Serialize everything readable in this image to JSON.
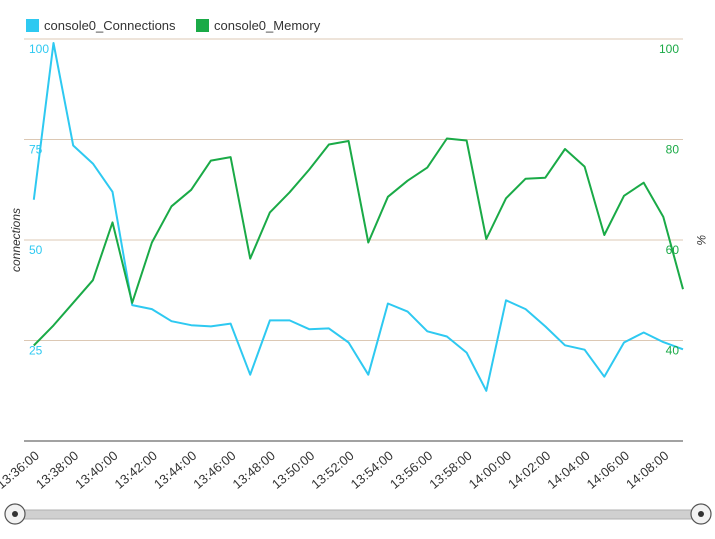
{
  "chart_data": {
    "type": "line",
    "legend": {
      "placement": "top-left",
      "items": [
        {
          "label": "console0_Connections",
          "color": "#2ec9f1"
        },
        {
          "label": "console0_Memory",
          "color": "#1aaa47"
        }
      ]
    },
    "y_left": {
      "label": "connections",
      "range": [
        0,
        100
      ],
      "ticks": [
        {
          "value": 25,
          "label": "25"
        },
        {
          "value": 50,
          "label": "50"
        },
        {
          "value": 75,
          "label": "75"
        },
        {
          "value": 100,
          "label": "100"
        }
      ],
      "color": "#2ec9f1"
    },
    "y_right": {
      "label": "%",
      "range": [
        20,
        100
      ],
      "ticks": [
        {
          "value": 40,
          "label": "40"
        },
        {
          "value": 60,
          "label": "60"
        },
        {
          "value": 80,
          "label": "80"
        },
        {
          "value": 100,
          "label": "100"
        }
      ],
      "color": "#1aaa47"
    },
    "x_axis": {
      "range": [
        0,
        33.5
      ],
      "ticks": [
        {
          "index": 0,
          "label": "13:36:00"
        },
        {
          "index": 2,
          "label": "13:38:00"
        },
        {
          "index": 4,
          "label": "13:40:00"
        },
        {
          "index": 6,
          "label": "13:42:00"
        },
        {
          "index": 8,
          "label": "13:44:00"
        },
        {
          "index": 10,
          "label": "13:46:00"
        },
        {
          "index": 12,
          "label": "13:48:00"
        },
        {
          "index": 14,
          "label": "13:50:00"
        },
        {
          "index": 16,
          "label": "13:52:00"
        },
        {
          "index": 18,
          "label": "13:54:00"
        },
        {
          "index": 20,
          "label": "13:56:00"
        },
        {
          "index": 22,
          "label": "13:58:00"
        },
        {
          "index": 24,
          "label": "14:00:00"
        },
        {
          "index": 26,
          "label": "14:02:00"
        },
        {
          "index": 28,
          "label": "14:04:00"
        },
        {
          "index": 30,
          "label": "14:06:00"
        },
        {
          "index": 32,
          "label": "14:08:00"
        }
      ]
    },
    "grid": true,
    "series": [
      {
        "name": "console0_Connections",
        "axis": "left",
        "color": "#2ec9f1",
        "points": [
          [
            0.5,
            60
          ],
          [
            1.5,
            99
          ],
          [
            2.5,
            73.5
          ],
          [
            3.5,
            69
          ],
          [
            4.5,
            62
          ],
          [
            5.5,
            33.8
          ],
          [
            6.5,
            32.8
          ],
          [
            7.5,
            29.8
          ],
          [
            8.5,
            28.8
          ],
          [
            9.5,
            28.5
          ],
          [
            10.5,
            29.2
          ],
          [
            11.5,
            16.5
          ],
          [
            12.5,
            30
          ],
          [
            13.5,
            30
          ],
          [
            14.5,
            27.8
          ],
          [
            15.5,
            28
          ],
          [
            16.5,
            24.5
          ],
          [
            17.5,
            16.5
          ],
          [
            18.5,
            34.2
          ],
          [
            19.5,
            32.2
          ],
          [
            20.5,
            27.3
          ],
          [
            21.5,
            26
          ],
          [
            22.5,
            22
          ],
          [
            23.5,
            12.5
          ],
          [
            24.5,
            35
          ],
          [
            25.5,
            32.8
          ],
          [
            26.5,
            28.5
          ],
          [
            27.5,
            23.8
          ],
          [
            28.5,
            22.7
          ],
          [
            29.5,
            16
          ],
          [
            30.5,
            24.5
          ],
          [
            31.5,
            27
          ],
          [
            32.5,
            24.6
          ],
          [
            33.5,
            22.8
          ]
        ]
      },
      {
        "name": "console0_Memory",
        "axis": "right",
        "color": "#1aaa47",
        "points": [
          [
            0.5,
            39
          ],
          [
            1.5,
            43
          ],
          [
            2.5,
            47.5
          ],
          [
            3.5,
            52
          ],
          [
            4.5,
            63.5
          ],
          [
            5.5,
            47.5
          ],
          [
            6.5,
            59.5
          ],
          [
            7.5,
            66.7
          ],
          [
            8.5,
            70
          ],
          [
            9.5,
            75.8
          ],
          [
            10.5,
            76.5
          ],
          [
            11.5,
            56.3
          ],
          [
            12.5,
            65.5
          ],
          [
            13.5,
            69.5
          ],
          [
            14.5,
            74
          ],
          [
            15.5,
            79
          ],
          [
            16.5,
            79.7
          ],
          [
            17.5,
            59.5
          ],
          [
            18.5,
            68.6
          ],
          [
            19.5,
            71.8
          ],
          [
            20.5,
            74.4
          ],
          [
            21.5,
            80.2
          ],
          [
            22.5,
            79.8
          ],
          [
            23.5,
            60.2
          ],
          [
            24.5,
            68.3
          ],
          [
            25.5,
            72.2
          ],
          [
            26.5,
            72.4
          ],
          [
            27.5,
            78.1
          ],
          [
            28.5,
            74.6
          ],
          [
            29.5,
            61
          ],
          [
            30.5,
            68.8
          ],
          [
            31.5,
            71.4
          ],
          [
            32.5,
            64.6
          ],
          [
            33.5,
            50.2
          ]
        ]
      }
    ]
  },
  "scrollbar": {
    "left_handle_icon": "circle-handle-icon",
    "right_handle_icon": "circle-handle-icon"
  }
}
